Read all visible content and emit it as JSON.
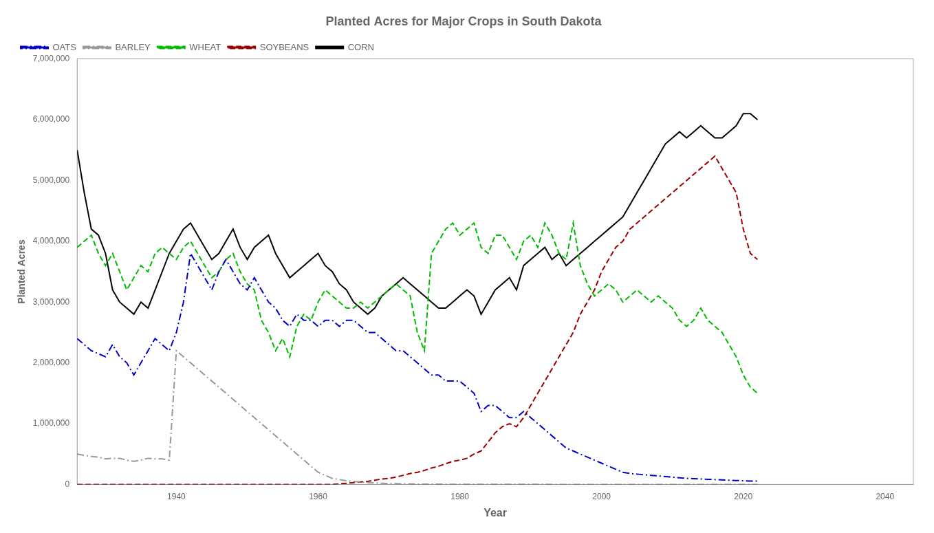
{
  "chart_data": {
    "type": "line",
    "title": "Planted Acres for Major Crops in South Dakota",
    "x_label": "Year",
    "y_label": "Planted Acres",
    "xlim": [
      1926,
      2044
    ],
    "ylim": [
      0,
      7000000
    ],
    "xticks": [
      1940,
      1960,
      1980,
      2000,
      2020,
      2040
    ],
    "yticks": [
      0,
      {
        "value": 1000000,
        "label": "1,000,000"
      },
      {
        "value": 2000000,
        "label": "2,000,000"
      },
      {
        "value": 3000000,
        "label": "3,000,000"
      },
      {
        "value": 4000000,
        "label": "4,000,000"
      },
      {
        "value": 5000000,
        "label": "5,000,000"
      },
      {
        "value": 6000000,
        "label": "6,000,000"
      },
      {
        "value": 7000000,
        "label": "7,000,000"
      }
    ],
    "grid": false,
    "legend": "upper left",
    "x": [
      1926,
      1927,
      1928,
      1929,
      1930,
      1931,
      1932,
      1933,
      1934,
      1935,
      1936,
      1937,
      1938,
      1939,
      1940,
      1941,
      1942,
      1943,
      1944,
      1945,
      1946,
      1947,
      1948,
      1949,
      1950,
      1951,
      1952,
      1953,
      1954,
      1955,
      1956,
      1957,
      1958,
      1959,
      1960,
      1961,
      1962,
      1963,
      1964,
      1965,
      1966,
      1967,
      1968,
      1969,
      1970,
      1971,
      1972,
      1973,
      1974,
      1975,
      1976,
      1977,
      1978,
      1979,
      1980,
      1981,
      1982,
      1983,
      1984,
      1985,
      1986,
      1987,
      1988,
      1989,
      1990,
      1991,
      1992,
      1993,
      1994,
      1995,
      1996,
      1997,
      1998,
      1999,
      2000,
      2001,
      2002,
      2003,
      2004,
      2005,
      2006,
      2007,
      2008,
      2009,
      2010,
      2011,
      2012,
      2013,
      2014,
      2015,
      2016,
      2017,
      2018,
      2019,
      2020,
      2021,
      2022
    ],
    "series": [
      {
        "name": "OATS",
        "color": "#0000cc",
        "line_style": "dashdot",
        "values": [
          2400000,
          2300000,
          2200000,
          2150000,
          2100000,
          2300000,
          2100000,
          2000000,
          1800000,
          2000000,
          2200000,
          2400000,
          2300000,
          2200000,
          2500000,
          3000000,
          3800000,
          3600000,
          3400000,
          3200000,
          3500000,
          3700000,
          3500000,
          3300000,
          3200000,
          3400000,
          3200000,
          3000000,
          2900000,
          2700000,
          2600000,
          2800000,
          2700000,
          2700000,
          2600000,
          2700000,
          2700000,
          2600000,
          2700000,
          2700000,
          2600000,
          2500000,
          2500000,
          2400000,
          2300000,
          2200000,
          2200000,
          2100000,
          2000000,
          1900000,
          1800000,
          1800000,
          1700000,
          1700000,
          1700000,
          1600000,
          1500000,
          1200000,
          1300000,
          1300000,
          1200000,
          1100000,
          1100000,
          1200000,
          1100000,
          1000000,
          900000,
          800000,
          700000,
          600000,
          550000,
          500000,
          450000,
          400000,
          350000,
          300000,
          250000,
          200000,
          180000,
          170000,
          160000,
          150000,
          140000,
          130000,
          120000,
          110000,
          100000,
          95000,
          90000,
          85000,
          80000,
          75000,
          70000,
          65000,
          60000,
          55000,
          55000
        ]
      },
      {
        "name": "BARLEY",
        "color": "#999999",
        "line_style": "dashdot",
        "values": [
          500000,
          480000,
          460000,
          450000,
          420000,
          430000,
          430000,
          400000,
          380000,
          400000,
          430000,
          420000,
          420000,
          400000,
          2200000,
          2100000,
          2000000,
          1900000,
          1800000,
          1700000,
          1600000,
          1500000,
          1400000,
          1300000,
          1200000,
          1100000,
          1000000,
          900000,
          800000,
          700000,
          600000,
          500000,
          400000,
          300000,
          200000,
          150000,
          100000,
          80000,
          60000,
          50000,
          40000,
          30000,
          25000,
          20000,
          15000,
          12000,
          10000,
          8000,
          6000,
          5000,
          4000,
          3500,
          3000,
          2500,
          2000,
          1800,
          1600,
          1400,
          1200,
          1000,
          800,
          700,
          600,
          500,
          400,
          350,
          300,
          250,
          200,
          180,
          150,
          120,
          100,
          80,
          60,
          50,
          40,
          30,
          25,
          20,
          15,
          12,
          10,
          8,
          6,
          5,
          4,
          3,
          3,
          2,
          2,
          1,
          1,
          1,
          1,
          1,
          1
        ]
      },
      {
        "name": "WHEAT",
        "color": "#00bb00",
        "line_style": "dashed",
        "values": [
          3900000,
          4000000,
          4100000,
          3800000,
          3600000,
          3800000,
          3500000,
          3200000,
          3400000,
          3600000,
          3500000,
          3800000,
          3900000,
          3800000,
          3700000,
          3900000,
          4000000,
          3800000,
          3600000,
          3400000,
          3500000,
          3700000,
          3800000,
          3500000,
          3300000,
          3200000,
          2700000,
          2500000,
          2200000,
          2400000,
          2100000,
          2600000,
          2800000,
          2700000,
          3000000,
          3200000,
          3100000,
          3000000,
          2900000,
          2900000,
          3000000,
          2900000,
          3000000,
          3100000,
          3200000,
          3300000,
          3200000,
          3100000,
          2500000,
          2200000,
          3800000,
          4000000,
          4200000,
          4300000,
          4100000,
          4200000,
          4300000,
          3900000,
          3800000,
          4100000,
          4100000,
          3900000,
          3700000,
          4000000,
          4100000,
          3900000,
          4300000,
          4100000,
          3800000,
          3700000,
          4300000,
          3600000,
          3300000,
          3100000,
          3200000,
          3300000,
          3200000,
          3000000,
          3100000,
          3200000,
          3100000,
          3000000,
          3100000,
          3000000,
          2900000,
          2700000,
          2600000,
          2700000,
          2900000,
          2700000,
          2600000,
          2500000,
          2300000,
          2100000,
          1800000,
          1600000,
          1500000
        ]
      },
      {
        "name": "SOYBEANS",
        "color": "#990000",
        "line_style": "dashed",
        "values": [
          0,
          0,
          0,
          0,
          0,
          0,
          0,
          0,
          0,
          0,
          0,
          0,
          0,
          0,
          0,
          0,
          0,
          0,
          0,
          0,
          0,
          0,
          0,
          0,
          0,
          0,
          0,
          0,
          0,
          0,
          0,
          0,
          0,
          0,
          0,
          0,
          0,
          10000,
          20000,
          30000,
          40000,
          50000,
          70000,
          90000,
          100000,
          120000,
          150000,
          180000,
          200000,
          230000,
          270000,
          300000,
          340000,
          380000,
          400000,
          430000,
          500000,
          550000,
          700000,
          850000,
          950000,
          1000000,
          950000,
          1100000,
          1300000,
          1500000,
          1700000,
          1900000,
          2100000,
          2300000,
          2500000,
          2800000,
          3000000,
          3200000,
          3500000,
          3700000,
          3900000,
          4000000,
          4200000,
          4300000,
          4400000,
          4500000,
          4600000,
          4700000,
          4800000,
          4900000,
          5000000,
          5100000,
          5200000,
          5300000,
          5400000,
          5200000,
          5000000,
          4800000,
          4200000,
          3800000,
          3700000
        ]
      },
      {
        "name": "CORN",
        "color": "#000000",
        "line_style": "solid",
        "values": [
          5500000,
          4800000,
          4200000,
          4100000,
          3800000,
          3200000,
          3000000,
          2900000,
          2800000,
          3000000,
          2900000,
          3200000,
          3500000,
          3800000,
          4000000,
          4200000,
          4300000,
          4100000,
          3900000,
          3700000,
          3800000,
          4000000,
          4200000,
          3900000,
          3700000,
          3900000,
          4000000,
          4100000,
          3800000,
          3600000,
          3400000,
          3500000,
          3600000,
          3700000,
          3800000,
          3600000,
          3500000,
          3300000,
          3200000,
          3000000,
          2900000,
          2800000,
          2900000,
          3100000,
          3200000,
          3300000,
          3400000,
          3300000,
          3200000,
          3100000,
          3000000,
          2900000,
          2900000,
          3000000,
          3100000,
          3200000,
          3100000,
          2800000,
          3000000,
          3200000,
          3300000,
          3400000,
          3200000,
          3600000,
          3700000,
          3800000,
          3900000,
          3700000,
          3800000,
          3600000,
          3700000,
          3800000,
          3900000,
          4000000,
          4100000,
          4200000,
          4300000,
          4400000,
          4600000,
          4800000,
          5000000,
          5200000,
          5400000,
          5600000,
          5700000,
          5800000,
          5700000,
          5800000,
          5900000,
          5800000,
          5700000,
          5700000,
          5800000,
          5900000,
          6100000,
          6100000,
          6000000
        ]
      }
    ]
  }
}
